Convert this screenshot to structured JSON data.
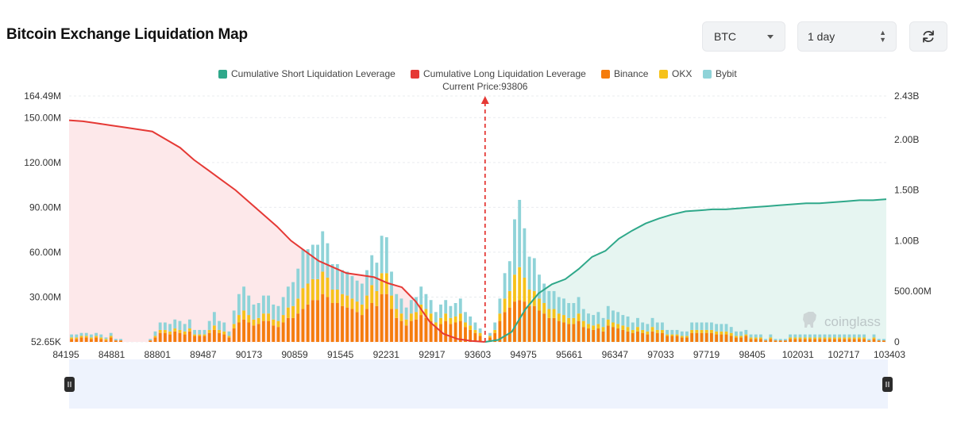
{
  "header": {
    "title": "Bitcoin Exchange Liquidation Map",
    "coin_select": "BTC",
    "range_select": "1 day",
    "refresh_icon": "refresh-icon"
  },
  "watermark": "coinglass",
  "colors": {
    "short": "#2fa88a",
    "long": "#e53935",
    "binance": "#f57c0d",
    "okx": "#f6c21a",
    "bybit": "#8fd3d8",
    "short_fill": "#e6f5f1",
    "long_fill": "#fde8ea",
    "slider_bg": "#eef3fd",
    "grid": "#e9ecef"
  },
  "chart_data": {
    "type": "bar+line",
    "title": "Bitcoin Exchange Liquidation Map",
    "legend": [
      "Cumulative Short Liquidation Leverage",
      "Cumulative Long Liquidation Leverage",
      "Binance",
      "OKX",
      "Bybit"
    ],
    "current_price_label": "Current Price:93806",
    "current_price": 93806,
    "x_ticks": [
      "84195",
      "84881",
      "88801",
      "89487",
      "90173",
      "90859",
      "91545",
      "92231",
      "92917",
      "93603",
      "94975",
      "95661",
      "96347",
      "97033",
      "97719",
      "98405",
      "102031",
      "102717",
      "103403"
    ],
    "y_left_ticks": [
      "52.65K",
      "30.00M",
      "60.00M",
      "90.00M",
      "120.00M",
      "150.00M",
      "164.49M"
    ],
    "y_left_tick_values": [
      0.05265,
      30,
      60,
      90,
      120,
      150,
      164.49
    ],
    "y_left_range": [
      0,
      164.49
    ],
    "y_right_ticks": [
      "0",
      "500.00M",
      "1.00B",
      "1.50B",
      "2.00B",
      "2.43B"
    ],
    "y_right_tick_values": [
      0,
      0.5,
      1.0,
      1.5,
      2.0,
      2.43
    ],
    "y_right_range": [
      0,
      2.43
    ],
    "units": {
      "left": "M USD",
      "right": "B USD"
    },
    "current_index": 84,
    "binance": [
      2,
      2,
      3,
      3,
      2,
      3,
      2,
      1,
      3,
      1,
      1,
      0,
      0,
      0,
      0,
      0,
      1,
      3,
      6,
      6,
      5,
      7,
      6,
      5,
      7,
      4,
      4,
      4,
      6,
      8,
      6,
      5,
      3,
      9,
      13,
      15,
      13,
      11,
      12,
      14,
      14,
      11,
      10,
      13,
      16,
      16,
      19,
      22,
      25,
      28,
      28,
      32,
      30,
      26,
      26,
      24,
      23,
      22,
      20,
      18,
      22,
      26,
      24,
      32,
      32,
      22,
      16,
      14,
      11,
      14,
      15,
      18,
      16,
      14,
      10,
      12,
      14,
      12,
      13,
      14,
      10,
      8,
      6,
      4,
      0,
      3,
      6,
      14,
      20,
      23,
      27,
      28,
      27,
      24,
      24,
      21,
      19,
      16,
      16,
      14,
      13,
      12,
      12,
      14,
      10,
      9,
      8,
      9,
      7,
      11,
      10,
      9,
      8,
      7,
      6,
      7,
      6,
      5,
      7,
      6,
      6,
      4,
      4,
      4,
      3,
      3,
      6,
      6,
      6,
      6,
      6,
      5,
      5,
      5,
      4,
      3,
      3,
      4,
      2,
      2,
      2,
      1,
      2,
      1,
      1,
      1,
      2,
      2,
      2,
      2,
      2,
      2,
      2,
      2,
      2,
      2,
      2,
      2,
      2,
      2,
      2,
      2,
      1,
      2,
      1,
      1
    ],
    "okx": [
      1,
      1,
      1,
      1,
      1,
      1,
      1,
      1,
      1,
      0,
      0,
      0,
      0,
      0,
      0,
      0,
      0,
      1,
      2,
      2,
      2,
      2,
      2,
      2,
      2,
      1,
      1,
      1,
      2,
      3,
      2,
      2,
      1,
      3,
      5,
      6,
      5,
      4,
      4,
      5,
      5,
      4,
      4,
      5,
      7,
      8,
      10,
      14,
      14,
      14,
      14,
      15,
      13,
      9,
      9,
      8,
      8,
      7,
      7,
      7,
      9,
      12,
      10,
      14,
      14,
      9,
      6,
      5,
      4,
      5,
      5,
      7,
      6,
      5,
      3,
      4,
      5,
      4,
      4,
      5,
      3,
      3,
      2,
      2,
      0,
      1,
      2,
      5,
      9,
      11,
      18,
      22,
      16,
      11,
      10,
      8,
      7,
      6,
      6,
      5,
      5,
      4,
      4,
      5,
      4,
      3,
      3,
      3,
      3,
      4,
      3,
      3,
      3,
      3,
      2,
      3,
      2,
      2,
      3,
      2,
      2,
      1,
      1,
      1,
      1,
      1,
      2,
      2,
      2,
      2,
      2,
      2,
      2,
      2,
      2,
      1,
      1,
      1,
      1,
      1,
      1,
      0,
      1,
      0,
      0,
      0,
      1,
      1,
      1,
      1,
      1,
      1,
      1,
      1,
      1,
      1,
      1,
      1,
      1,
      1,
      1,
      1,
      0,
      1,
      0,
      0
    ],
    "bybit": [
      2,
      2,
      2,
      2,
      2,
      2,
      2,
      1,
      2,
      1,
      1,
      0,
      0,
      0,
      0,
      0,
      1,
      3,
      5,
      5,
      5,
      6,
      6,
      5,
      6,
      3,
      3,
      3,
      6,
      9,
      6,
      6,
      3,
      9,
      14,
      16,
      13,
      10,
      10,
      12,
      12,
      10,
      10,
      12,
      14,
      16,
      20,
      26,
      23,
      23,
      23,
      27,
      23,
      17,
      17,
      16,
      16,
      15,
      14,
      14,
      17,
      20,
      19,
      25,
      24,
      16,
      10,
      10,
      8,
      9,
      10,
      12,
      10,
      9,
      7,
      9,
      9,
      8,
      9,
      10,
      7,
      6,
      5,
      3,
      0,
      2,
      5,
      10,
      17,
      20,
      37,
      45,
      33,
      22,
      22,
      16,
      13,
      12,
      12,
      11,
      11,
      10,
      10,
      11,
      8,
      7,
      7,
      8,
      6,
      9,
      8,
      8,
      7,
      7,
      5,
      6,
      5,
      5,
      6,
      5,
      5,
      3,
      3,
      3,
      3,
      3,
      5,
      5,
      5,
      5,
      5,
      5,
      5,
      5,
      4,
      3,
      3,
      3,
      2,
      2,
      2,
      1,
      2,
      1,
      1,
      1,
      2,
      2,
      2,
      2,
      2,
      2,
      2,
      2,
      2,
      2,
      2,
      2,
      2,
      2,
      2,
      2,
      1,
      2,
      1,
      1
    ],
    "long_cumulative_B": [
      2.19,
      2.18,
      2.16,
      2.14,
      2.12,
      2.1,
      2.08,
      2.0,
      1.92,
      1.8,
      1.7,
      1.6,
      1.5,
      1.38,
      1.26,
      1.14,
      1.0,
      0.9,
      0.8,
      0.74,
      0.68,
      0.66,
      0.64,
      0.58,
      0.54,
      0.4,
      0.2,
      0.08,
      0.03,
      0.01,
      0.0
    ],
    "short_cumulative_B": [
      0.0,
      0.02,
      0.1,
      0.32,
      0.48,
      0.57,
      0.62,
      0.72,
      0.84,
      0.9,
      1.02,
      1.1,
      1.17,
      1.22,
      1.26,
      1.29,
      1.3,
      1.31,
      1.31,
      1.32,
      1.33,
      1.34,
      1.35,
      1.36,
      1.37,
      1.37,
      1.38,
      1.39,
      1.4,
      1.4,
      1.41
    ]
  }
}
